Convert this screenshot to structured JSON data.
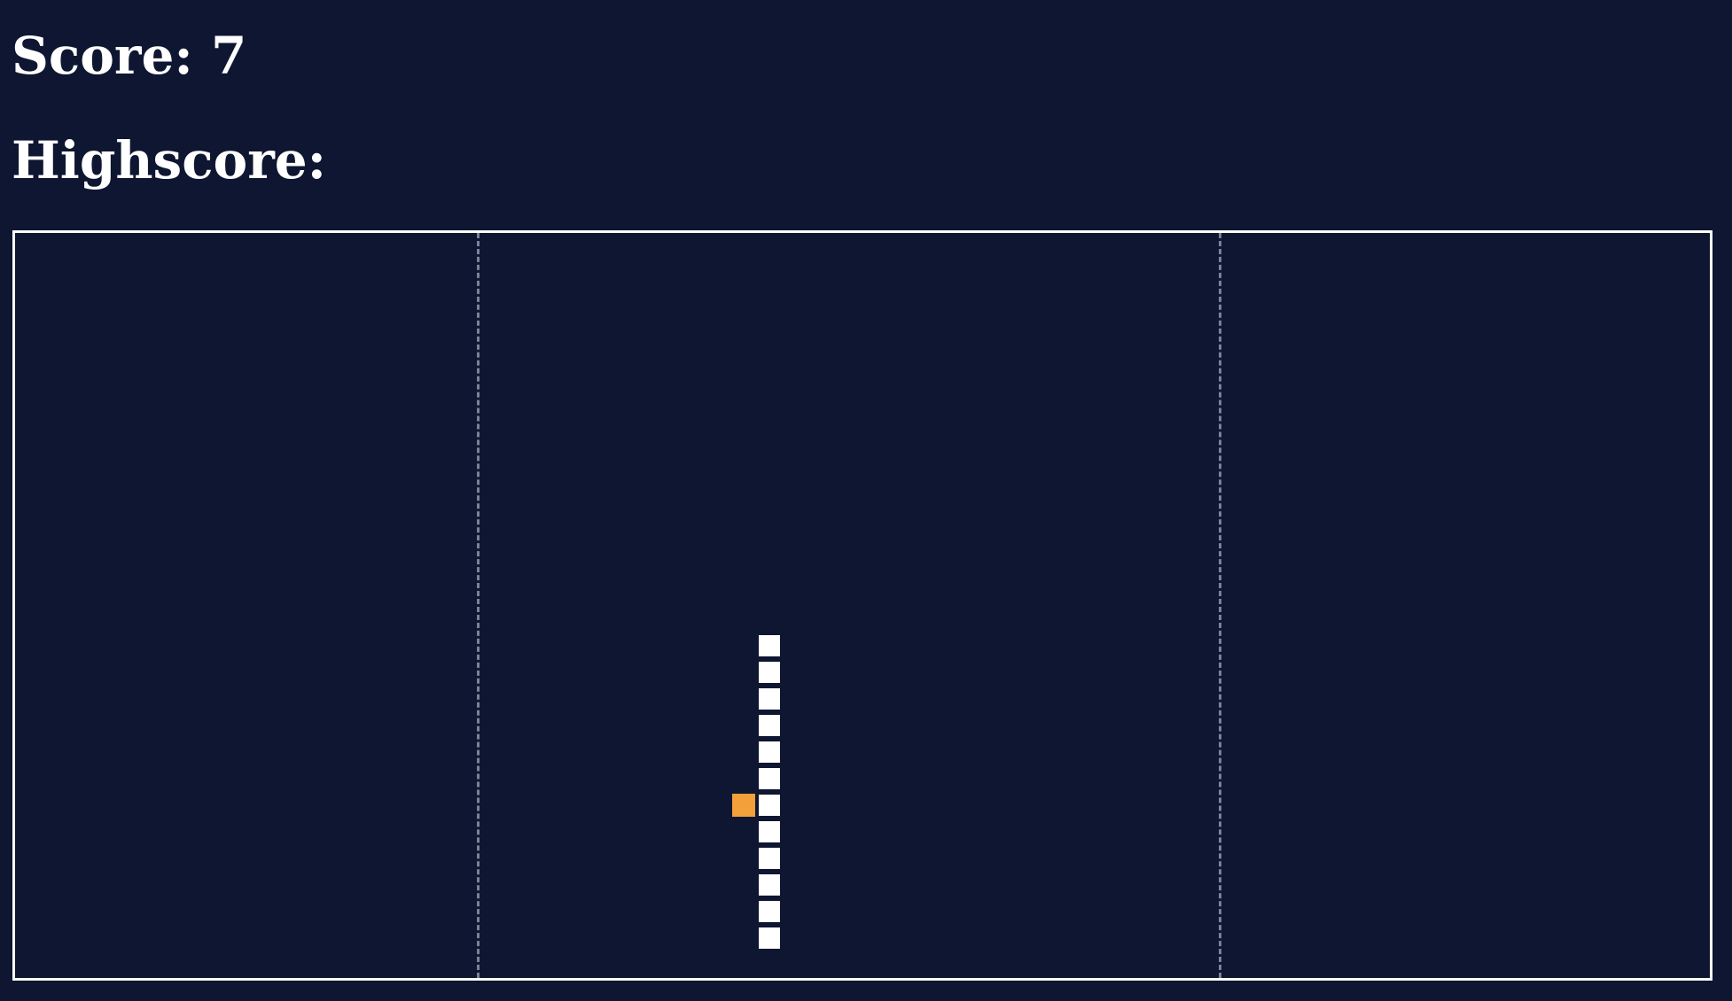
{
  "hud": {
    "score_text": "Score: 7",
    "highscore_text": "Highscore:"
  },
  "game": {
    "score": 7,
    "grid": {
      "columns": 64,
      "rows": 28
    },
    "lanes": {
      "divider_columns": [
        17.5,
        45.5
      ],
      "divider_style": "dashed"
    },
    "snake": {
      "direction": "up",
      "segments": [
        [
          28,
          15
        ],
        [
          28,
          16
        ],
        [
          28,
          17
        ],
        [
          28,
          18
        ],
        [
          28,
          19
        ],
        [
          28,
          20
        ],
        [
          28,
          21
        ],
        [
          28,
          22
        ],
        [
          28,
          23
        ],
        [
          28,
          24
        ],
        [
          28,
          25
        ],
        [
          28,
          26
        ]
      ]
    },
    "food": [
      27,
      21
    ]
  },
  "colors": {
    "background": "#0e1631",
    "border": "#ffffff",
    "snake": "#ffffff",
    "food": "#f3a03a",
    "divider": "#7b8296"
  }
}
